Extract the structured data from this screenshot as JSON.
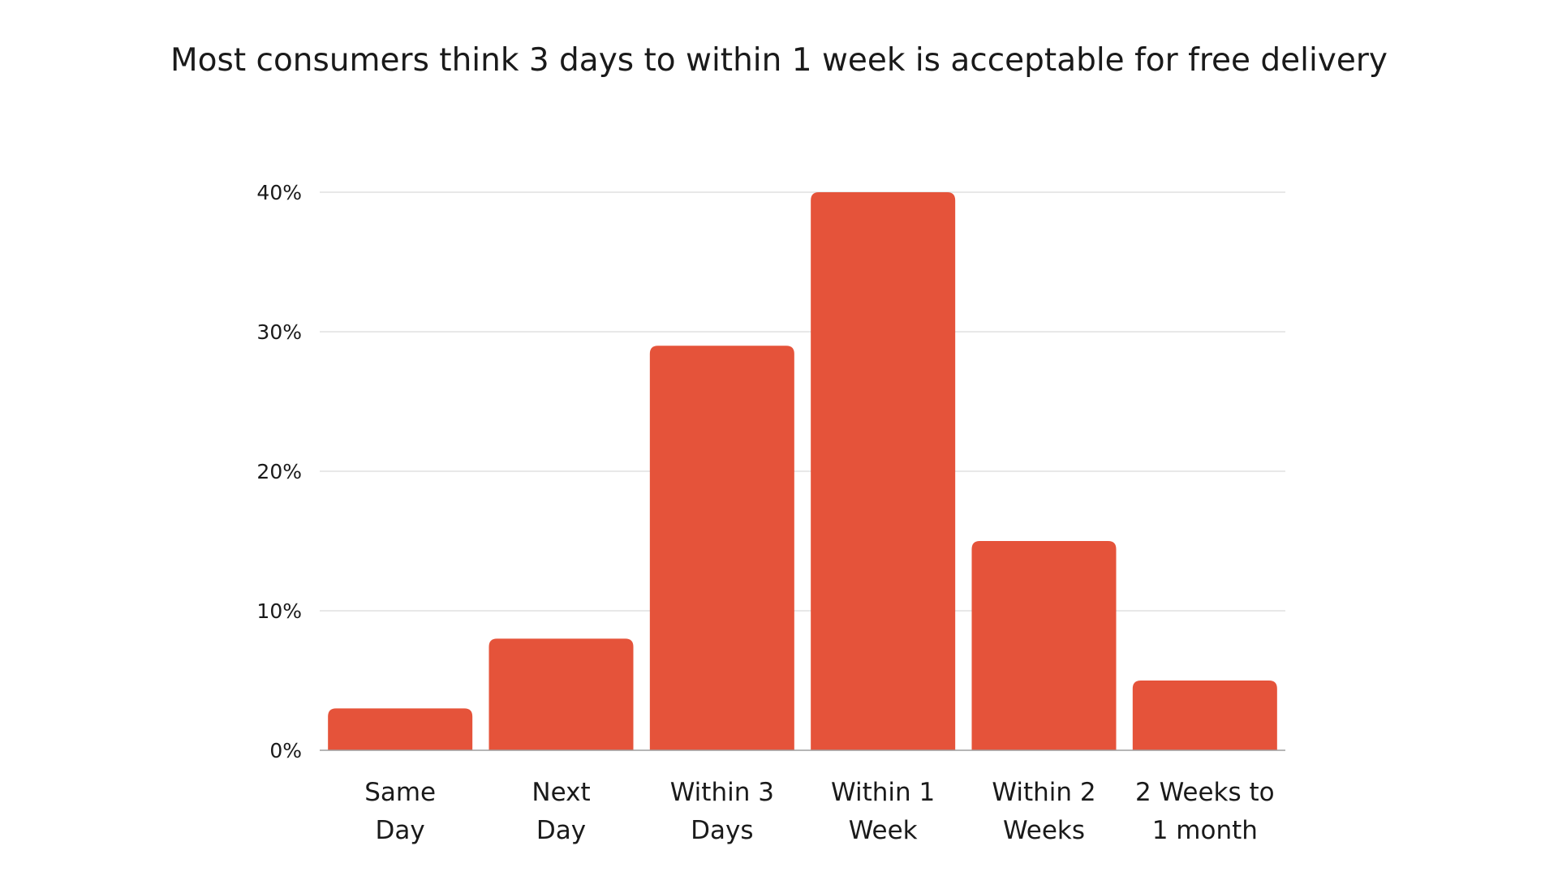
{
  "chart_data": {
    "type": "bar",
    "title": "Most consumers think 3 days to within 1 week is acceptable for free delivery",
    "xlabel": "",
    "ylabel": "",
    "categories": [
      [
        "Same",
        "Day"
      ],
      [
        "Next",
        "Day"
      ],
      [
        "Within 3",
        "Days"
      ],
      [
        "Within 1",
        "Week"
      ],
      [
        "Within 2",
        "Weeks"
      ],
      [
        "2 Weeks to",
        "1 month"
      ]
    ],
    "values": [
      3,
      8,
      29,
      40,
      15,
      5
    ],
    "ylim": [
      0,
      40
    ],
    "yticks": [
      0,
      10,
      20,
      30,
      40
    ],
    "ytick_labels": [
      "0%",
      "10%",
      "20%",
      "30%",
      "40%"
    ],
    "grid": true,
    "legend": "none",
    "bar_color": "#E5533A"
  }
}
